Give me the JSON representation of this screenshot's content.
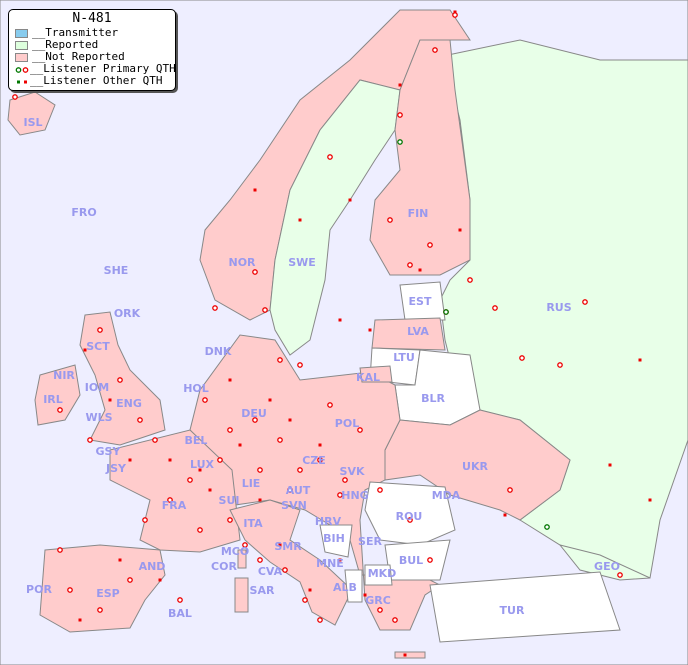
{
  "title": "N-481",
  "legend": {
    "items": [
      {
        "label": "__Transmitter",
        "color": "#88ccee"
      },
      {
        "label": "__Reported",
        "color": "#ddffdd"
      },
      {
        "label": "__Not Reported",
        "color": "#ffcccc"
      },
      {
        "label": "__Listener Primary QTH",
        "marker": "ring",
        "colors": [
          "#007700",
          "#ee0000"
        ]
      },
      {
        "label": "__Listener Other QTH",
        "marker": "square",
        "colors": [
          "#007700",
          "#ee0000"
        ]
      }
    ]
  },
  "colors": {
    "sea": "#eeeeff",
    "reported": "#e8ffe8",
    "not_reported": "#ffcccc",
    "no_data": "#ffffff",
    "label": "#9999ee",
    "listener": "#ee0000"
  },
  "countries": {
    "reported": [
      "SWE",
      "RUS",
      "GEO"
    ],
    "not_reported": [
      "ISL",
      "NOR",
      "FIN",
      "LVA",
      "DNK",
      "HOL",
      "DEU",
      "POL",
      "IRL",
      "NIR",
      "SCT",
      "IOM",
      "WLS",
      "ENG",
      "GSY",
      "JSY",
      "BEL",
      "LUX",
      "CZE",
      "SVK",
      "UKR",
      "MDA",
      "FRA",
      "LIE",
      "AUT",
      "HNG",
      "SUI",
      "SVN",
      "HRV",
      "ITA",
      "SER",
      "MCO",
      "SMR",
      "COR",
      "CVA",
      "MNE",
      "AND",
      "POR",
      "ESP",
      "SAR",
      "BAL",
      "GRC",
      "KAL"
    ],
    "no_data": [
      "EST",
      "LTU",
      "BLR",
      "ROU",
      "BUL",
      "BIH",
      "MKD",
      "ALB",
      "TUR",
      "FRO",
      "SHE",
      "ORK"
    ]
  },
  "labels": [
    "ISL",
    "FRO",
    "SHE",
    "ORK",
    "NOR",
    "SWE",
    "FIN",
    "EST",
    "RUS",
    "LVA",
    "LTU",
    "KAL",
    "BLR",
    "DNK",
    "HOL",
    "DEU",
    "POL",
    "IRL",
    "NIR",
    "SCT",
    "IOM",
    "WLS",
    "ENG",
    "GSY",
    "JSY",
    "BEL",
    "LUX",
    "CZE",
    "SVK",
    "UKR",
    "MDA",
    "FRA",
    "LIE",
    "AUT",
    "HNG",
    "SUI",
    "ROU",
    "SVN",
    "HRV",
    "ITA",
    "BIH",
    "SER",
    "MCO",
    "SMR",
    "BUL",
    "COR",
    "CVA",
    "MNE",
    "GEO",
    "AND",
    "MKD",
    "ALB",
    "POR",
    "ESP",
    "SAR",
    "BAL",
    "GRC",
    "TUR"
  ]
}
